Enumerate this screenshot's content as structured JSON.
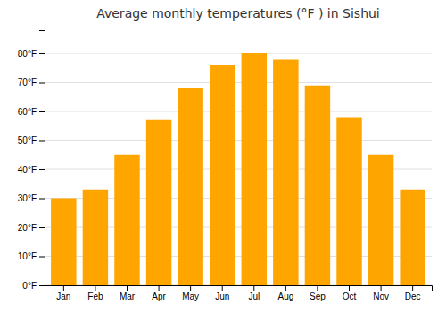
{
  "chart_data": {
    "type": "bar",
    "title": "Average monthly temperatures (°F ) in Sishui",
    "categories": [
      "Jan",
      "Feb",
      "Mar",
      "Apr",
      "May",
      "Jun",
      "Jul",
      "Aug",
      "Sep",
      "Oct",
      "Nov",
      "Dec"
    ],
    "values": [
      30,
      33,
      45,
      57,
      68,
      76,
      80,
      78,
      69,
      58,
      45,
      33
    ],
    "color": "#FFA500",
    "ylim": [
      0,
      88
    ],
    "yticks": [
      {
        "value": 0,
        "label": "0°F"
      },
      {
        "value": 10,
        "label": "10°F"
      },
      {
        "value": 20,
        "label": "20°F"
      },
      {
        "value": 30,
        "label": "30°F"
      },
      {
        "value": 40,
        "label": "40°F"
      },
      {
        "value": 50,
        "label": "50°F"
      },
      {
        "value": 60,
        "label": "60°F"
      },
      {
        "value": 70,
        "label": "70°F"
      },
      {
        "value": 80,
        "label": "80°F"
      }
    ],
    "grid": true
  }
}
